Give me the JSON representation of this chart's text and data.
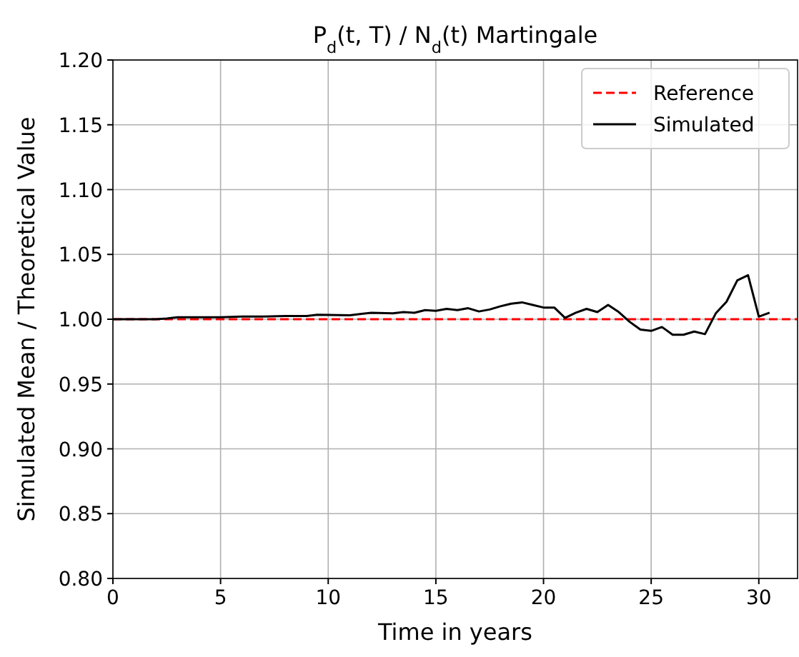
{
  "chart_data": {
    "type": "line",
    "title": "P$_{d}$(t, T) / N$_{d}$(t) Martingale",
    "xlabel": "Time in years",
    "ylabel": "Simulated Mean / Theoretical Value",
    "xlim": [
      0,
      31.8
    ],
    "xticks": [
      0,
      5,
      10,
      15,
      20,
      25,
      30
    ],
    "ylim": [
      0.8,
      1.2
    ],
    "yticks": [
      {
        "value": 0.8,
        "label": "0.80"
      },
      {
        "value": 0.85,
        "label": "0.85"
      },
      {
        "value": 0.9,
        "label": "0.90"
      },
      {
        "value": 0.95,
        "label": "0.95"
      },
      {
        "value": 1.0,
        "label": "1.00"
      },
      {
        "value": 1.05,
        "label": "1.05"
      },
      {
        "value": 1.1,
        "label": "1.10"
      },
      {
        "value": 1.15,
        "label": "1.15"
      },
      {
        "value": 1.2,
        "label": "1.20"
      }
    ],
    "grid": true,
    "legend": "top right",
    "series": [
      {
        "name": "Reference",
        "color": "#ff0000",
        "line_style": "dashed",
        "x": [
          0,
          31.8
        ],
        "values": [
          1,
          1
        ]
      },
      {
        "name": "Simulated",
        "color": "#000000",
        "line_style": "solid",
        "x": [
          0,
          1,
          2,
          2.5,
          3,
          4,
          5,
          6,
          7,
          8,
          9,
          9.5,
          11,
          12,
          13,
          13.5,
          14,
          14.5,
          15,
          15.5,
          16,
          16.5,
          17,
          17.5,
          18,
          18.5,
          19,
          19.5,
          20,
          20.5,
          21,
          21.5,
          22,
          22.5,
          23,
          23.5,
          24,
          24.5,
          25,
          25.5,
          26,
          26.5,
          27,
          27.5,
          28,
          28.5,
          29,
          29.5,
          30,
          30.5
        ],
        "values": [
          1.0,
          1.0,
          1.0,
          1.0005,
          1.0015,
          1.0015,
          1.0015,
          1.002,
          1.002,
          1.0025,
          1.0025,
          1.0035,
          1.003,
          1.005,
          1.0045,
          1.0055,
          1.005,
          1.007,
          1.0065,
          1.008,
          1.007,
          1.0085,
          1.006,
          1.0075,
          1.01,
          1.012,
          1.013,
          1.011,
          1.009,
          1.009,
          1.001,
          1.005,
          1.008,
          1.0055,
          1.011,
          1.0055,
          0.998,
          0.992,
          0.991,
          0.994,
          0.988,
          0.988,
          0.9905,
          0.9885,
          1.0045,
          1.0135,
          1.03,
          1.034,
          1.002,
          1.005
        ]
      }
    ]
  }
}
